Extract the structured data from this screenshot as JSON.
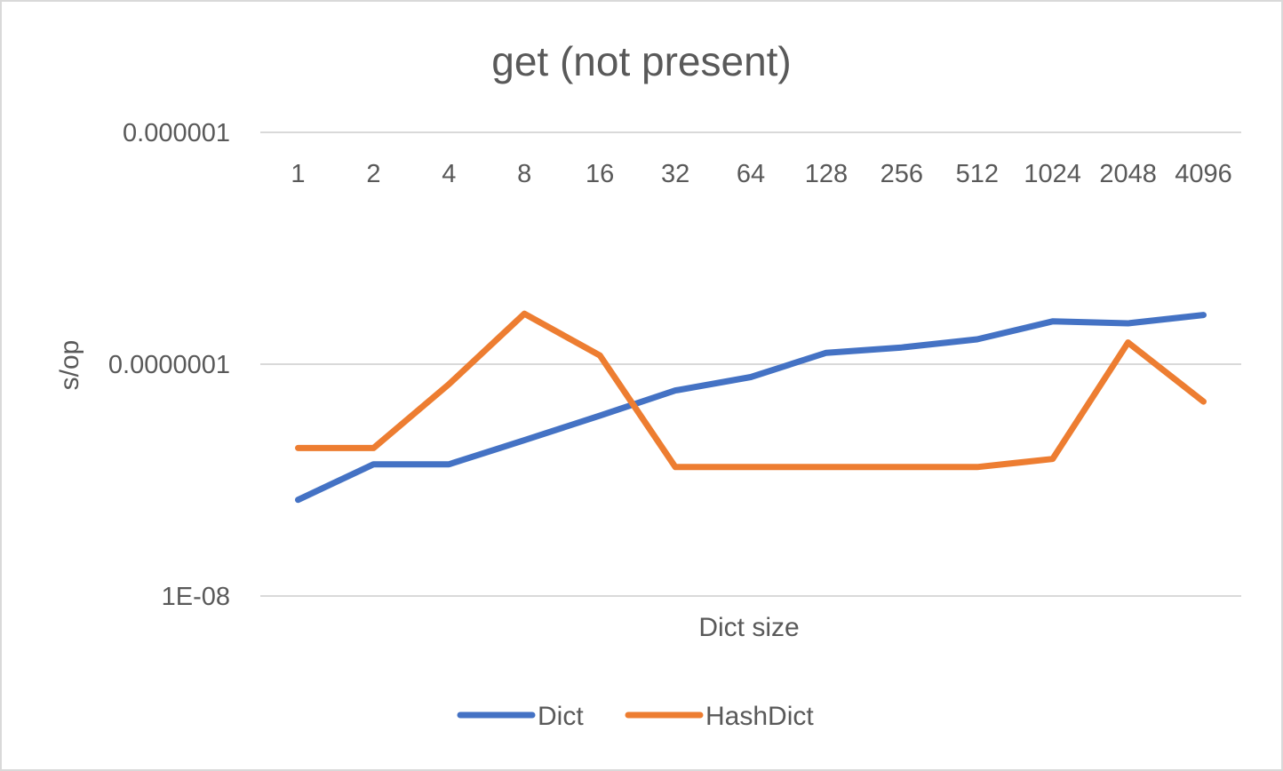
{
  "chart_data": {
    "type": "line",
    "title": "get (not present)",
    "xlabel": "Dict size",
    "ylabel": "s/op",
    "y_scale": "log",
    "ylim": [
      1e-08,
      1e-06
    ],
    "y_tick_labels": [
      "0.000001",
      "0.0000001",
      "1E-08"
    ],
    "categories": [
      "1",
      "2",
      "4",
      "8",
      "16",
      "32",
      "64",
      "128",
      "256",
      "512",
      "1024",
      "2048",
      "4096"
    ],
    "x_axis_position": "top",
    "grid": true,
    "legend_position": "bottom",
    "series": [
      {
        "name": "Dict",
        "color": "#4472c4",
        "values": [
          2.6e-08,
          3.7e-08,
          3.7e-08,
          4.7e-08,
          6e-08,
          7.7e-08,
          8.8e-08,
          1.12e-07,
          1.18e-07,
          1.28e-07,
          1.53e-07,
          1.5e-07,
          1.63e-07
        ]
      },
      {
        "name": "HashDict",
        "color": "#ed7d31",
        "values": [
          4.35e-08,
          4.35e-08,
          8.2e-08,
          1.65e-07,
          1.09e-07,
          3.6e-08,
          3.6e-08,
          3.6e-08,
          3.6e-08,
          3.6e-08,
          3.9e-08,
          1.24e-07,
          6.9e-08
        ]
      }
    ]
  }
}
